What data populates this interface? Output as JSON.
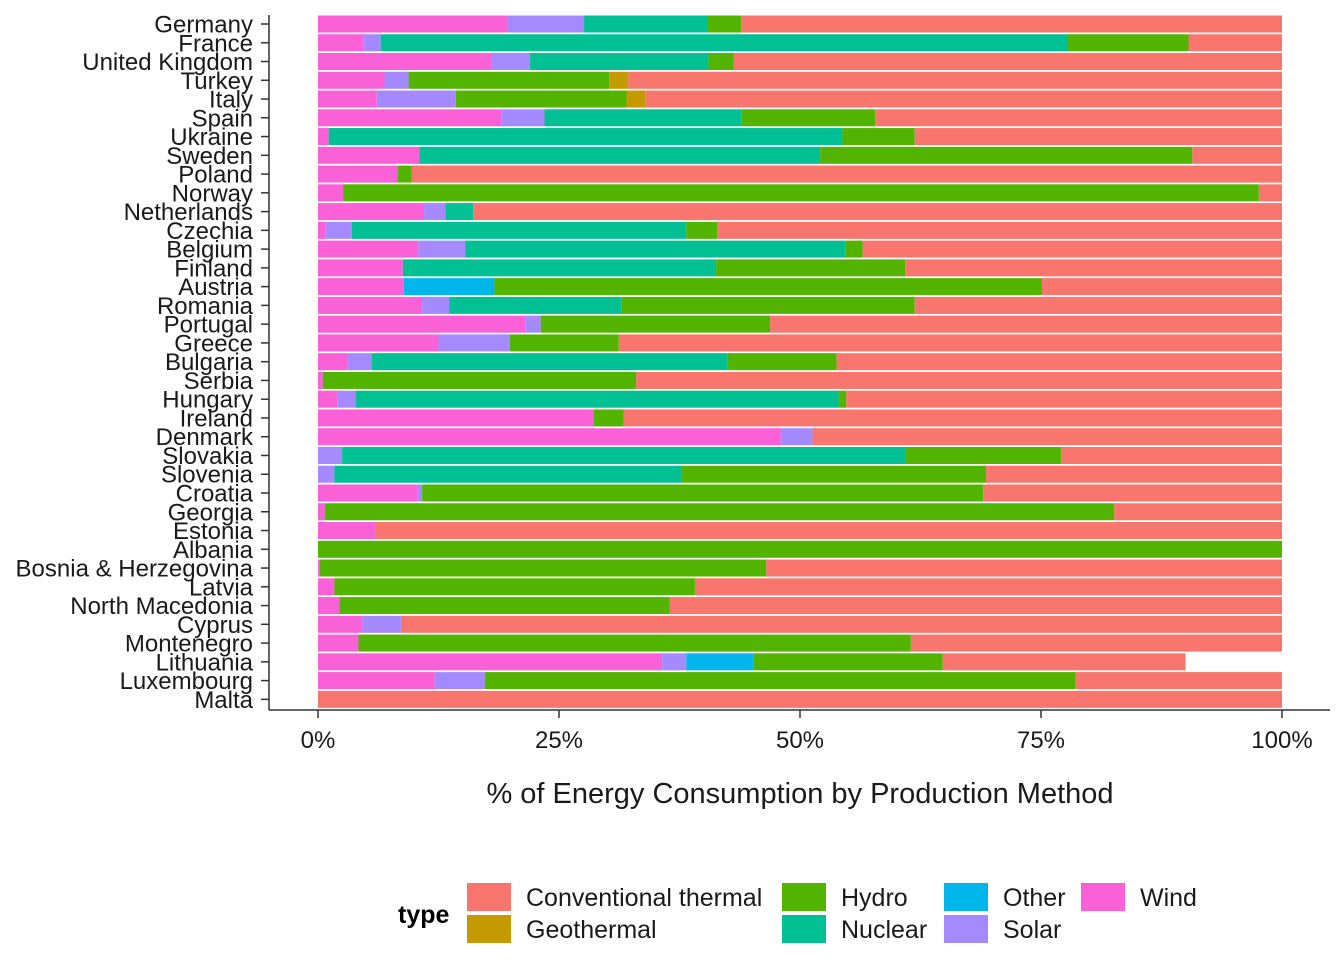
{
  "chart_data": {
    "type": "bar",
    "orientation": "horizontal",
    "stacked": true,
    "normalized": true,
    "xlabel": "% of Energy Consumption by Production Method",
    "ylabel": "",
    "xlim": [
      0,
      100
    ],
    "x_ticks": [
      "0%",
      "25%",
      "50%",
      "75%",
      "100%"
    ],
    "x_tick_values": [
      0,
      25,
      50,
      75,
      100
    ],
    "grid": false,
    "legend": {
      "title": "type",
      "position": "bottom",
      "entries": [
        "Conventional thermal",
        "Geothermal",
        "Hydro",
        "Nuclear",
        "Other",
        "Solar",
        "Wind"
      ]
    },
    "stack_order": [
      "Wind",
      "Solar",
      "Other",
      "Nuclear",
      "Hydro",
      "Geothermal",
      "Conventional thermal"
    ],
    "colors": {
      "Conventional thermal": "#F8766D",
      "Geothermal": "#C49A00",
      "Hydro": "#53B400",
      "Nuclear": "#00C094",
      "Other": "#00B6EB",
      "Solar": "#A58AFF",
      "Wind": "#FB61D7"
    },
    "categories": [
      "Germany",
      "France",
      "United Kingdom",
      "Turkey",
      "Italy",
      "Spain",
      "Ukraine",
      "Sweden",
      "Poland",
      "Norway",
      "Netherlands",
      "Czechia",
      "Belgium",
      "Finland",
      "Austria",
      "Romania",
      "Portugal",
      "Greece",
      "Bulgaria",
      "Serbia",
      "Hungary",
      "Ireland",
      "Denmark",
      "Slovakia",
      "Slovenia",
      "Croatia",
      "Georgia",
      "Estonia",
      "Albania",
      "Bosnia & Herzegovina",
      "Latvia",
      "North Macedonia",
      "Cyprus",
      "Montenegro",
      "Lithuania",
      "Luxembourg",
      "Malta"
    ],
    "series": [
      {
        "name": "Wind",
        "values": [
          19.6,
          4.7,
          18,
          6.9,
          6.1,
          19,
          1.1,
          10.5,
          8.3,
          2.6,
          11,
          0.8,
          10.4,
          8.8,
          8.9,
          10.8,
          21.5,
          12.5,
          3.1,
          0.5,
          2,
          28.6,
          48,
          0,
          0,
          10.3,
          0.7,
          5.9,
          0,
          0.2,
          1.7,
          2.2,
          4.6,
          4.2,
          35.7,
          12.1,
          0
        ]
      },
      {
        "name": "Solar",
        "values": [
          8,
          1.8,
          4,
          2.5,
          8.2,
          4.5,
          0,
          0,
          0,
          0,
          2.2,
          2.7,
          4.9,
          0,
          0,
          2.8,
          1.6,
          7.4,
          2.5,
          0,
          1.9,
          0,
          3.3,
          2.5,
          1.7,
          0.5,
          0,
          0,
          0,
          0,
          0,
          0,
          4,
          0,
          2.5,
          5.2,
          0
        ]
      },
      {
        "name": "Other",
        "values": [
          0,
          0,
          0,
          0,
          0,
          0,
          0,
          0,
          0,
          0,
          0,
          0,
          0,
          0,
          9.4,
          0,
          0,
          0,
          0,
          0,
          0,
          0,
          0,
          0,
          0,
          0,
          0,
          0,
          0,
          0,
          0,
          0,
          0,
          0,
          7,
          0,
          0
        ]
      },
      {
        "name": "Nuclear",
        "values": [
          12.8,
          71.3,
          18.5,
          0,
          0,
          20.4,
          53.3,
          41.6,
          0,
          0,
          2.9,
          34.7,
          39.4,
          32.5,
          0,
          17.9,
          0,
          0,
          36.9,
          0,
          50.1,
          0,
          0,
          58.4,
          36,
          0,
          0,
          0,
          0,
          0,
          0,
          0,
          0,
          0,
          0,
          0,
          0
        ]
      },
      {
        "name": "Hydro",
        "values": [
          3.5,
          12.5,
          2.6,
          20.8,
          17.7,
          13.9,
          7.5,
          38.6,
          1.4,
          95,
          0,
          3.2,
          1.8,
          19.6,
          56.8,
          30.4,
          23.8,
          11.3,
          11.3,
          32.5,
          0.8,
          3.1,
          0,
          16.2,
          31.6,
          58.2,
          81.9,
          0,
          100,
          46.3,
          37.4,
          34.3,
          0,
          57.3,
          19.6,
          61.3,
          0
        ]
      },
      {
        "name": "Geothermal",
        "values": [
          0,
          0,
          0,
          2,
          2,
          0,
          0,
          0,
          0,
          0,
          0,
          0,
          0,
          0,
          0,
          0,
          0,
          0,
          0,
          0,
          0,
          0,
          0,
          0,
          0,
          0,
          0,
          0,
          0,
          0,
          0,
          0,
          0,
          0,
          0,
          0,
          0
        ]
      },
      {
        "name": "Conventional thermal",
        "values": [
          56.1,
          9.7,
          56.9,
          67.8,
          66,
          42.2,
          38.1,
          9.3,
          90.3,
          2.4,
          83.9,
          58.6,
          43.5,
          39.1,
          24.9,
          38.1,
          53.1,
          68.8,
          46.2,
          67,
          45.2,
          68.3,
          48.7,
          22.9,
          30.7,
          31,
          17.4,
          94.1,
          0,
          53.5,
          60.9,
          63.5,
          91.4,
          38.5,
          25.2,
          21.4,
          100
        ]
      }
    ]
  }
}
